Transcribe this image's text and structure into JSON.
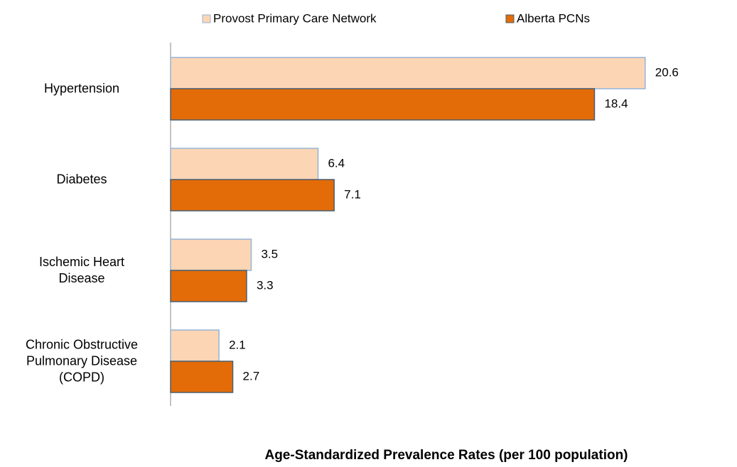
{
  "chart_data": {
    "type": "hbar",
    "title": "Age-Standardized Prevalence Rates (per 100 population)",
    "categories": [
      "Hypertension",
      "Diabetes",
      "Ischemic Heart\nDisease",
      "Chronic Obstructive\nPulmonary Disease\n(COPD)"
    ],
    "series": [
      {
        "name": "Provost Primary Care Network",
        "color": "#fcd5b5",
        "values": [
          20.6,
          6.4,
          3.5,
          2.1
        ]
      },
      {
        "name": "Alberta PCNs",
        "color": "#e36c09",
        "values": [
          18.4,
          7.1,
          3.3,
          2.7
        ]
      }
    ],
    "xlim": [
      0,
      24
    ],
    "legend": "top"
  }
}
